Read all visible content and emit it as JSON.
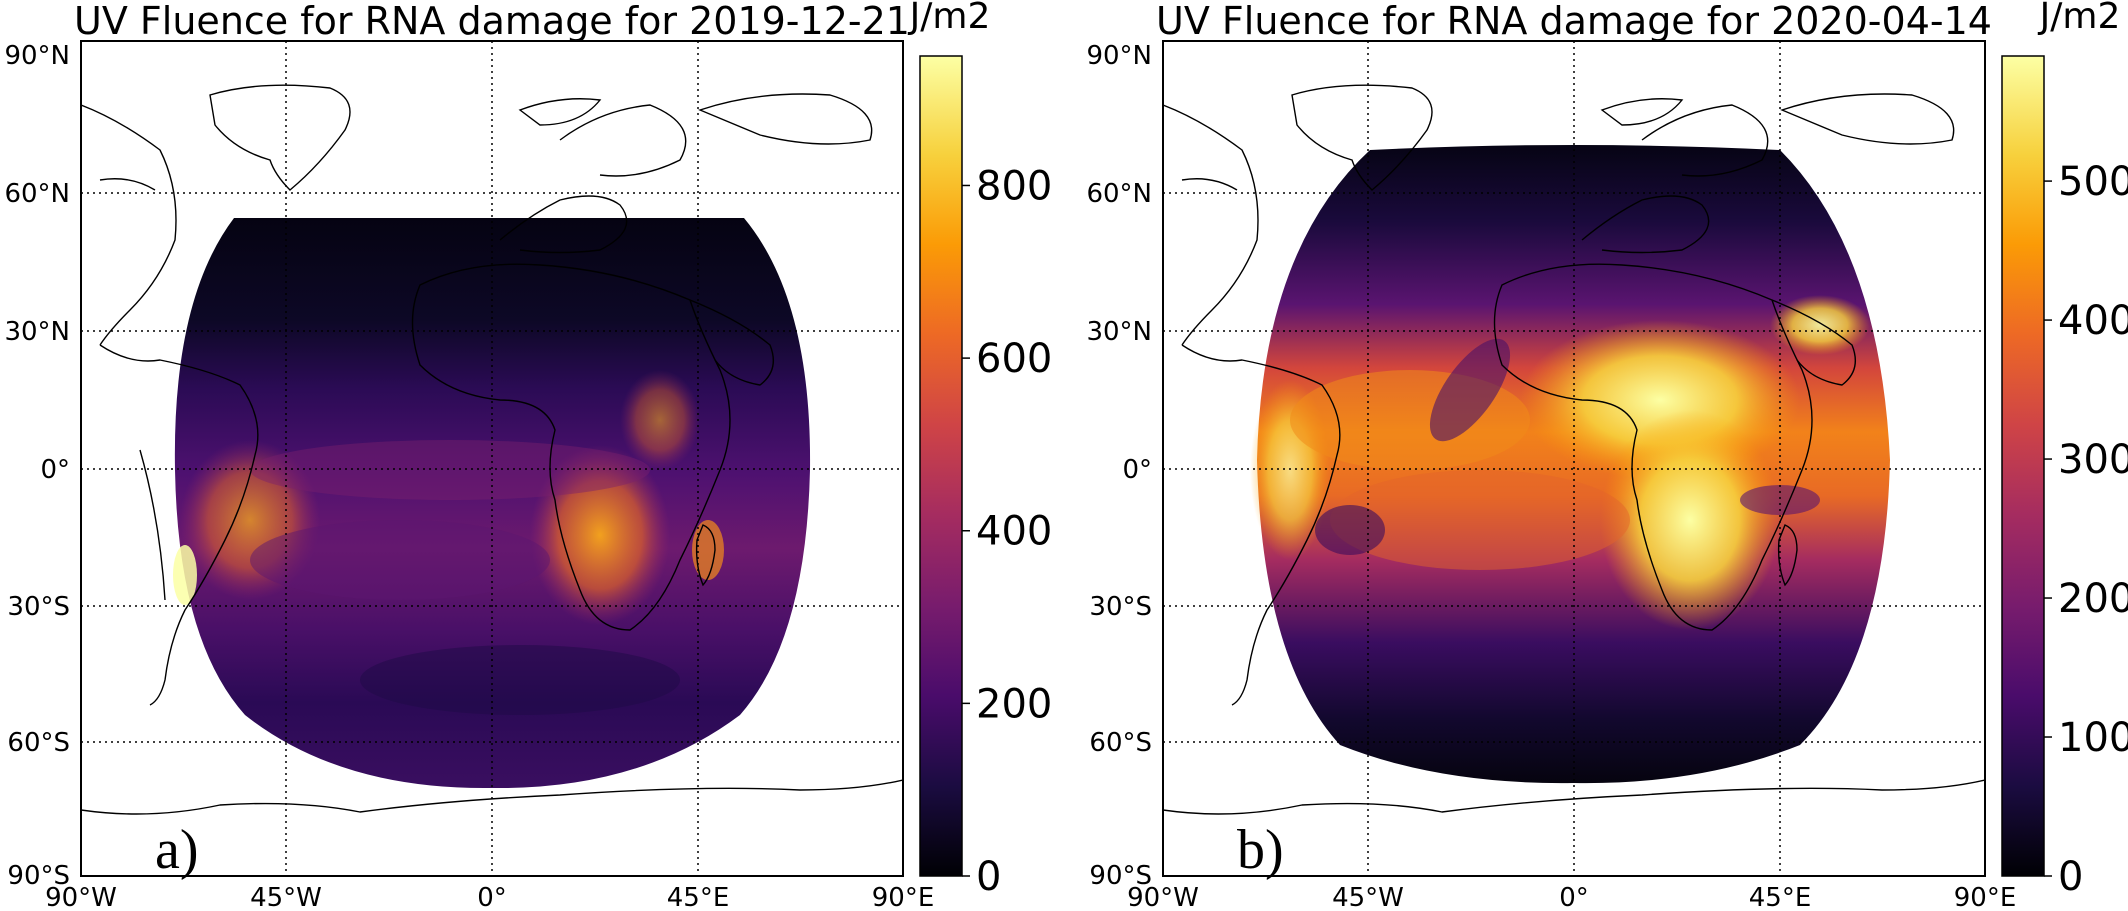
{
  "figure": {
    "panels": [
      {
        "title": "UV Fluence for RNA damage for 2019-12-21",
        "panel_label": "a)",
        "colorbar": {
          "unit": "J/m2",
          "min": 0,
          "max": 950,
          "ticks": [
            "0",
            "200",
            "400",
            "600",
            "800"
          ],
          "tick_values": [
            0,
            200,
            400,
            600,
            800
          ]
        },
        "lon_labels": [
          "90°W",
          "45°W",
          "0°",
          "45°E",
          "90°E"
        ],
        "lat_labels": [
          "90°N",
          "60°N",
          "30°N",
          "0°",
          "30°S",
          "60°S",
          "90°S"
        ],
        "data_extent": {
          "lat_north": 55,
          "lat_south": -70,
          "lon_west": -70,
          "lon_east": 70
        }
      },
      {
        "title": "UV Fluence for RNA damage for 2020-04-14",
        "panel_label": "b)",
        "colorbar": {
          "unit": "J/m2",
          "min": 0,
          "max": 590,
          "ticks": [
            "0",
            "100",
            "200",
            "300",
            "400",
            "500"
          ],
          "tick_values": [
            0,
            100,
            200,
            300,
            400,
            500
          ]
        },
        "lon_labels": [
          "90°W",
          "45°W",
          "0°",
          "45°E",
          "90°E"
        ],
        "lat_labels": [
          "90°N",
          "60°N",
          "30°N",
          "0°",
          "30°S",
          "60°S",
          "90°S"
        ],
        "data_extent": {
          "lat_north": 70,
          "lat_south": -68,
          "lon_west": -70,
          "lon_east": 70
        }
      }
    ],
    "colormap": "inferno",
    "colormap_stops": [
      "#000004",
      "#1b0c41",
      "#4a0c6b",
      "#781c6d",
      "#a52c60",
      "#cf4446",
      "#ed6925",
      "#fb9b06",
      "#f7d13d",
      "#fcffa4"
    ]
  }
}
